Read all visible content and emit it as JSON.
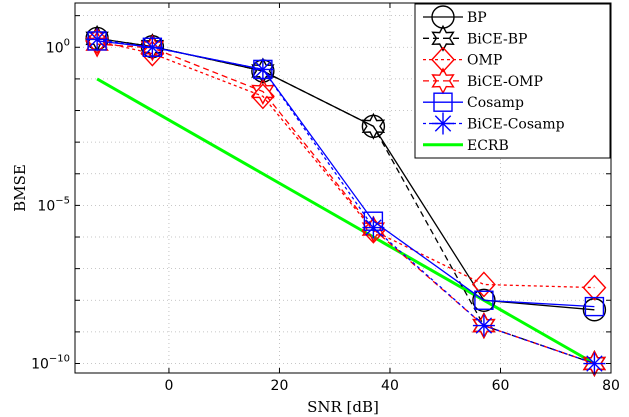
{
  "chart_data": {
    "type": "line",
    "xlabel": "SNR [dB]",
    "ylabel": "BMSE",
    "xlim": [
      -17,
      80
    ],
    "ylim": [
      -10.3,
      1.4
    ],
    "y_scale": "log10",
    "grid": true,
    "legend_position": "top-right",
    "x_ticks": [
      0,
      20,
      40,
      60,
      80
    ],
    "x_tick_labels": [
      "0",
      "20",
      "40",
      "60",
      "80"
    ],
    "y_ticks": [
      0,
      -5,
      -10
    ],
    "y_tick_labels": [
      {
        "base": "10",
        "exp": "0"
      },
      {
        "base": "10",
        "exp": "−5"
      },
      {
        "base": "10",
        "exp": "−10"
      }
    ],
    "series": [
      {
        "name": "BP",
        "color": "#000000",
        "dash": "solid",
        "marker": "circle",
        "x": [
          -13,
          -3,
          17,
          37,
          57,
          77
        ],
        "log10_y": [
          0.28,
          0.02,
          -0.75,
          -2.5,
          -8.0,
          -8.3
        ]
      },
      {
        "name": "BiCE-BP",
        "color": "#000000",
        "dash": "dashed",
        "marker": "hexagram",
        "x": [
          -13,
          -3,
          17,
          37,
          57,
          77
        ],
        "log10_y": [
          0.28,
          0.02,
          -0.75,
          -2.5,
          -8.8,
          -10.0
        ]
      },
      {
        "name": "OMP",
        "color": "#ff0000",
        "dash": "dotted",
        "marker": "diamond",
        "x": [
          -13,
          -3,
          17,
          37,
          57,
          77
        ],
        "log10_y": [
          0.2,
          -0.2,
          -1.55,
          -5.8,
          -7.5,
          -7.6
        ]
      },
      {
        "name": "BiCE-OMP",
        "color": "#ff0000",
        "dash": "dashed",
        "marker": "hexagram",
        "x": [
          -13,
          -3,
          17,
          37,
          57,
          77
        ],
        "log10_y": [
          0.1,
          -0.02,
          -1.4,
          -5.75,
          -8.8,
          -10.0
        ]
      },
      {
        "name": "Cosamp",
        "color": "#0000ff",
        "dash": "solid",
        "marker": "square",
        "x": [
          -13,
          -3,
          17,
          37,
          57,
          77
        ],
        "log10_y": [
          0.2,
          0.0,
          -0.7,
          -5.5,
          -8.0,
          -8.2
        ]
      },
      {
        "name": "BiCE-Cosamp",
        "color": "#0000ff",
        "dash": "dotted",
        "marker": "asterisk",
        "x": [
          -13,
          -3,
          17,
          37,
          57,
          77
        ],
        "log10_y": [
          0.25,
          0.0,
          -0.7,
          -5.7,
          -8.8,
          -10.0
        ]
      },
      {
        "name": "ECRB",
        "color": "#00ff00",
        "dash": "solid",
        "marker": "none",
        "x": [
          -13,
          77
        ],
        "log10_y": [
          -1.0,
          -10.0
        ]
      }
    ]
  }
}
